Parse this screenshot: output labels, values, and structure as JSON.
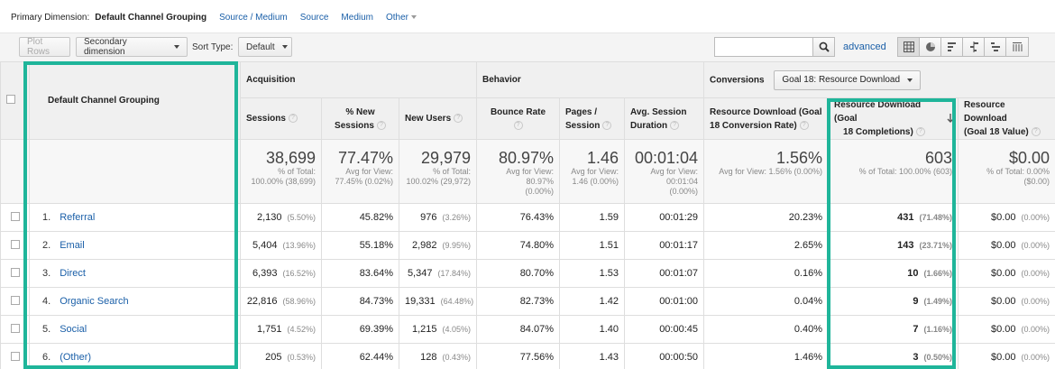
{
  "primary_dimension": {
    "label": "Primary Dimension:",
    "current": "Default Channel Grouping",
    "links": [
      "Source / Medium",
      "Source",
      "Medium"
    ],
    "other": "Other"
  },
  "toolbar": {
    "plot_rows": "Plot Rows",
    "secondary_dimension": "Secondary dimension",
    "sort_type_label": "Sort Type:",
    "sort_type_value": "Default",
    "search_placeholder": "",
    "advanced": "advanced",
    "view_icons": [
      "table-view-icon",
      "pie-view-icon",
      "performance-view-icon",
      "comparison-view-icon",
      "term-cloud-view-icon",
      "pivot-view-icon"
    ]
  },
  "groups": {
    "acquisition": "Acquisition",
    "behavior": "Behavior",
    "conversions": "Conversions",
    "goal_select": "Goal 18: Resource Download"
  },
  "columns": {
    "dimension": "Default Channel Grouping",
    "sessions": "Sessions",
    "new_sessions_1": "% New",
    "new_sessions_2": "Sessions",
    "new_users": "New Users",
    "bounce_rate_1": "Bounce Rate",
    "pages_session_1": "Pages /",
    "pages_session_2": "Session",
    "avg_duration_1": "Avg. Session",
    "avg_duration_2": "Duration",
    "conv_rate_1": "Resource Download (Goal",
    "conv_rate_2": "18 Conversion Rate)",
    "completions_1": "Resource Download (Goal",
    "completions_2": "18 Completions)",
    "value_1": "Resource Download",
    "value_2": "(Goal 18 Value)"
  },
  "totals": {
    "sessions": "38,699",
    "sessions_sub1": "% of Total:",
    "sessions_sub2": "100.00% (38,699)",
    "new_sessions": "77.47%",
    "new_sessions_sub1": "Avg for View:",
    "new_sessions_sub2": "77.45% (0.02%)",
    "new_users": "29,979",
    "new_users_sub1": "% of Total:",
    "new_users_sub2": "100.02% (29,972)",
    "bounce_rate": "80.97%",
    "bounce_rate_sub1": "Avg for View:",
    "bounce_rate_sub2": "80.97%",
    "bounce_rate_sub3": "(0.00%)",
    "pages": "1.46",
    "pages_sub1": "Avg for View:",
    "pages_sub2": "1.46 (0.00%)",
    "duration": "00:01:04",
    "duration_sub1": "Avg for View:",
    "duration_sub2": "00:01:04",
    "duration_sub3": "(0.00%)",
    "conv_rate": "1.56%",
    "conv_rate_sub1": "Avg for View: 1.56% (0.00%)",
    "completions": "603",
    "completions_sub1": "% of Total: 100.00% (603)",
    "value": "$0.00",
    "value_sub1": "% of Total: 0.00%",
    "value_sub2": "($0.00)"
  },
  "rows": [
    {
      "n": "1.",
      "channel": "Referral",
      "sessions": "2,130",
      "sessions_pct": "(5.50%)",
      "new_sessions": "45.82%",
      "new_users": "976",
      "new_users_pct": "(3.26%)",
      "bounce": "76.43%",
      "pages": "1.59",
      "duration": "00:01:29",
      "conv_rate": "20.23%",
      "completions": "431",
      "completions_pct": "(71.48%)",
      "value": "$0.00",
      "value_pct": "(0.00%)"
    },
    {
      "n": "2.",
      "channel": "Email",
      "sessions": "5,404",
      "sessions_pct": "(13.96%)",
      "new_sessions": "55.18%",
      "new_users": "2,982",
      "new_users_pct": "(9.95%)",
      "bounce": "74.80%",
      "pages": "1.51",
      "duration": "00:01:17",
      "conv_rate": "2.65%",
      "completions": "143",
      "completions_pct": "(23.71%)",
      "value": "$0.00",
      "value_pct": "(0.00%)"
    },
    {
      "n": "3.",
      "channel": "Direct",
      "sessions": "6,393",
      "sessions_pct": "(16.52%)",
      "new_sessions": "83.64%",
      "new_users": "5,347",
      "new_users_pct": "(17.84%)",
      "bounce": "80.70%",
      "pages": "1.53",
      "duration": "00:01:07",
      "conv_rate": "0.16%",
      "completions": "10",
      "completions_pct": "(1.66%)",
      "value": "$0.00",
      "value_pct": "(0.00%)"
    },
    {
      "n": "4.",
      "channel": "Organic Search",
      "sessions": "22,816",
      "sessions_pct": "(58.96%)",
      "new_sessions": "84.73%",
      "new_users": "19,331",
      "new_users_pct": "(64.48%)",
      "bounce": "82.73%",
      "pages": "1.42",
      "duration": "00:01:00",
      "conv_rate": "0.04%",
      "completions": "9",
      "completions_pct": "(1.49%)",
      "value": "$0.00",
      "value_pct": "(0.00%)"
    },
    {
      "n": "5.",
      "channel": "Social",
      "sessions": "1,751",
      "sessions_pct": "(4.52%)",
      "new_sessions": "69.39%",
      "new_users": "1,215",
      "new_users_pct": "(4.05%)",
      "bounce": "84.07%",
      "pages": "1.40",
      "duration": "00:00:45",
      "conv_rate": "0.40%",
      "completions": "7",
      "completions_pct": "(1.16%)",
      "value": "$0.00",
      "value_pct": "(0.00%)"
    },
    {
      "n": "6.",
      "channel": "(Other)",
      "sessions": "205",
      "sessions_pct": "(0.53%)",
      "new_sessions": "62.44%",
      "new_users": "128",
      "new_users_pct": "(0.43%)",
      "bounce": "77.56%",
      "pages": "1.43",
      "duration": "00:00:50",
      "conv_rate": "1.46%",
      "completions": "3",
      "completions_pct": "(0.50%)",
      "value": "$0.00",
      "value_pct": "(0.00%)"
    }
  ],
  "colors": {
    "highlight": "#1fb59a",
    "link": "#1a5fa8"
  }
}
